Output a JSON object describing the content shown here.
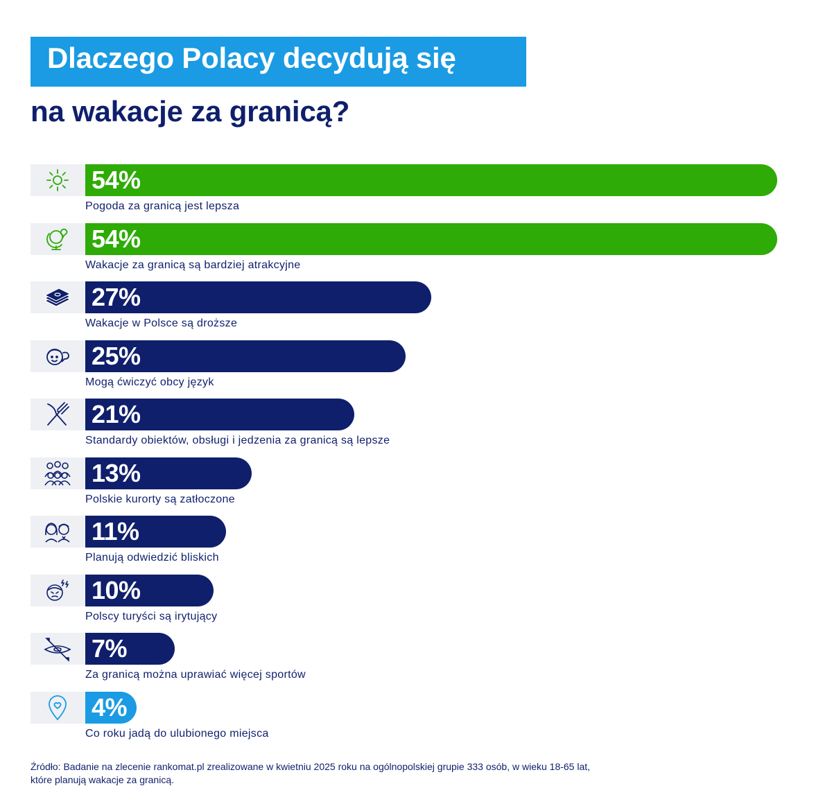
{
  "title": {
    "line1": "Dlaczego Polacy decydują się",
    "line2": "na wakacje za granicą?"
  },
  "colors": {
    "green": "#2eab06",
    "navy": "#0f1f6b",
    "blue": "#1a9be3",
    "icon_bg": "#eef0f4"
  },
  "chart_data": {
    "type": "bar",
    "orientation": "horizontal",
    "title": "Dlaczego Polacy decydują się na wakacje za granicą?",
    "xlim": [
      0,
      54
    ],
    "categories": [
      "Pogoda za granicą jest lepsza",
      "Wakacje za granicą są bardziej atrakcyjne",
      "Wakacje w Polsce są droższe",
      "Mogą ćwiczyć obcy język",
      "Standardy obiektów, obsługi i jedzenia za granicą są lepsze",
      "Polskie kurorty są zatłoczone",
      "Planują odwiedzić bliskich",
      "Polscy turyści są irytujący",
      "Za granicą można uprawiać więcej sportów",
      "Co roku jadą do ulubionego miejsca"
    ],
    "values": [
      54,
      54,
      27,
      25,
      21,
      13,
      11,
      10,
      7,
      4
    ],
    "labels": [
      "54%",
      "54%",
      "27%",
      "25%",
      "21%",
      "13%",
      "11%",
      "10%",
      "7%",
      "4%"
    ],
    "bar_colors": [
      "green",
      "green",
      "navy",
      "navy",
      "navy",
      "navy",
      "navy",
      "navy",
      "navy",
      "blue"
    ],
    "icons": [
      "sun-icon",
      "globe-icon",
      "money-icon",
      "speaking-person-icon",
      "cutlery-icon",
      "crowd-icon",
      "couple-icon",
      "annoyed-person-icon",
      "kayak-icon",
      "location-pin-icon"
    ]
  },
  "source": {
    "line1": "Źródło: Badanie na zlecenie rankomat.pl zrealizowane w kwietniu 2025 roku na ogólnopolskiej grupie 333 osób, w wieku 18-65 lat,",
    "line2": "które planują wakacje za granicą."
  }
}
